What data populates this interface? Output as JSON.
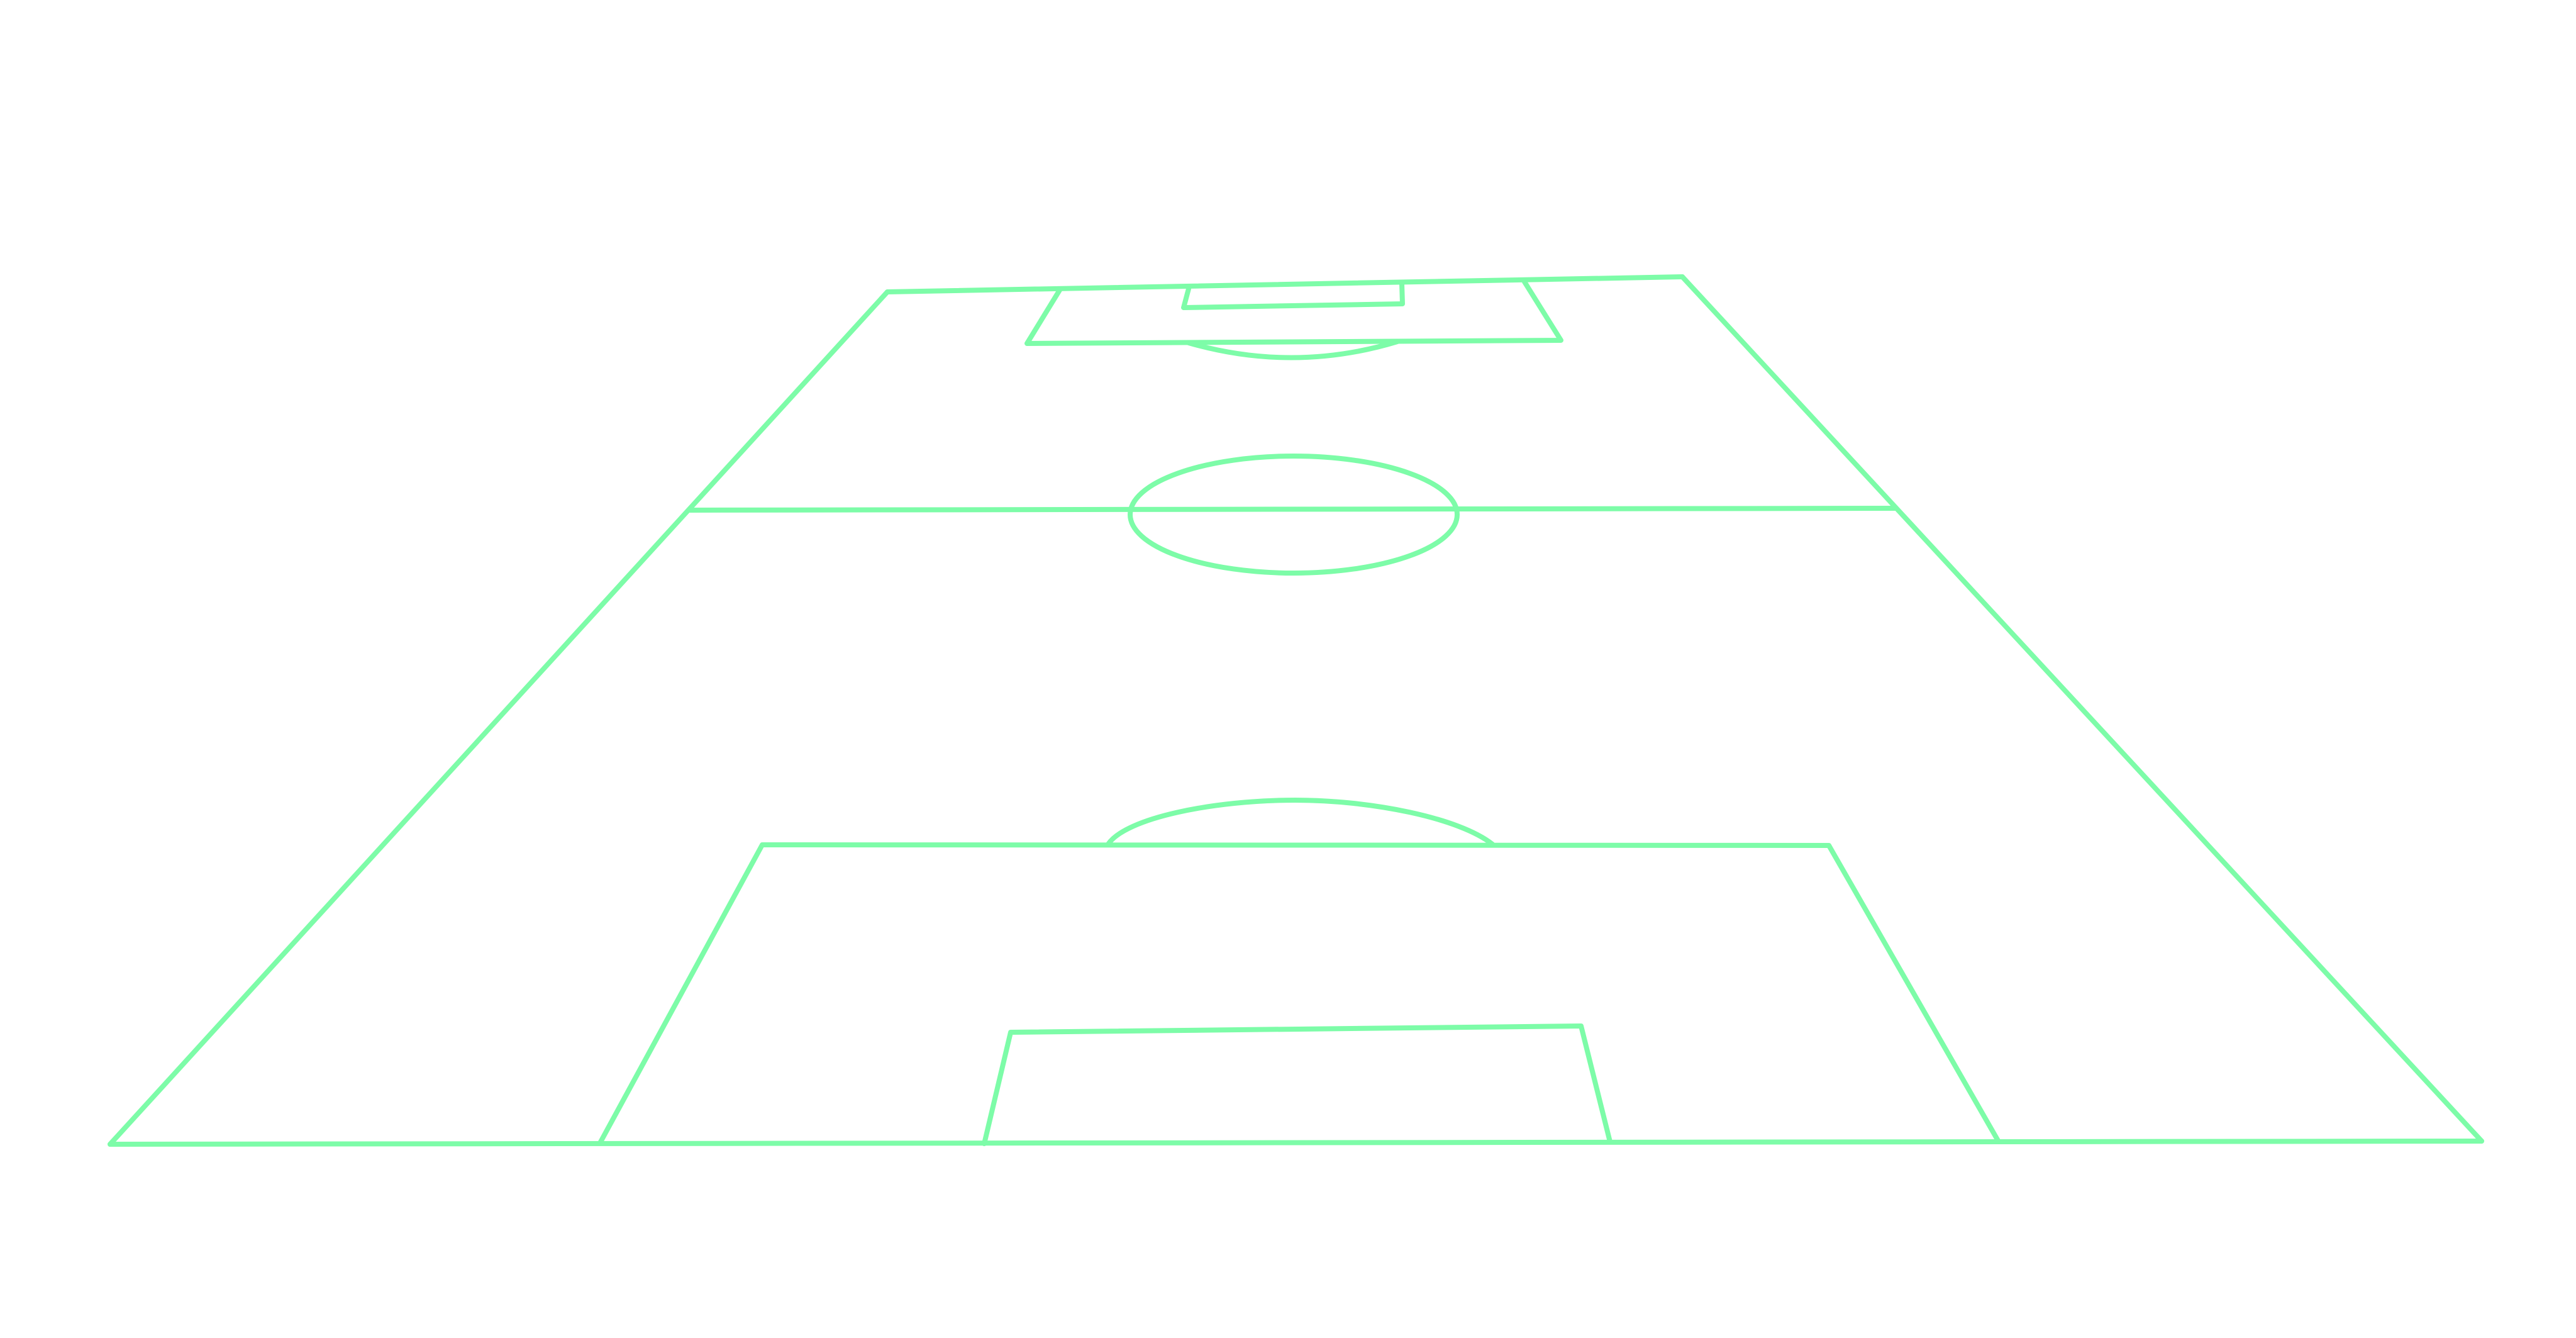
{
  "pitch": {
    "view": "perspective",
    "line_color": "#7dfca8",
    "background_color": "#ffffff",
    "markings": [
      "touchline-left",
      "touchline-right",
      "far-goal-line",
      "near-goal-line",
      "halfway-line",
      "centre-circle",
      "far-penalty-box",
      "far-goal-area",
      "far-penalty-arc",
      "near-penalty-box",
      "near-goal-area",
      "near-penalty-arc"
    ]
  }
}
